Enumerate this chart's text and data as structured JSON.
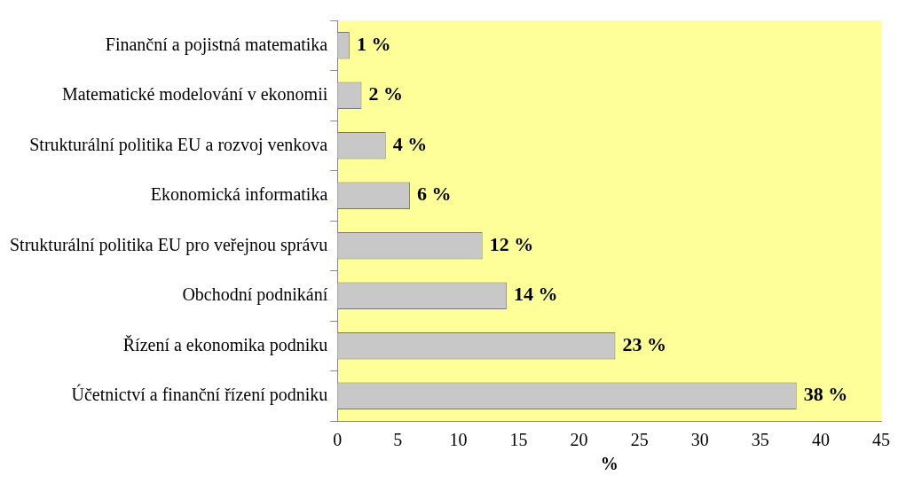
{
  "chart_data": {
    "type": "bar",
    "orientation": "horizontal",
    "xlabel": "%",
    "categories": [
      "Finanční a pojistná matematika",
      "Matematické modelování v ekonomii",
      "Strukturální politika EU a rozvoj venkova",
      "Ekonomická informatika",
      "Strukturální politika EU pro veřejnou správu",
      "Obchodní podnikání",
      "Řízení a ekonomika podniku",
      "Účetnictví a finanční řízení podniku"
    ],
    "values": [
      1,
      2,
      4,
      6,
      12,
      14,
      23,
      38
    ],
    "value_labels": [
      "1 %",
      "2 %",
      "4 %",
      "6 %",
      "12 %",
      "14 %",
      "23 %",
      "38 %"
    ],
    "color": "#c8c8c8",
    "xlim": [
      0,
      45
    ],
    "xticks": [
      0,
      5,
      10,
      15,
      20,
      25,
      30,
      35,
      40,
      45
    ],
    "grid": false,
    "legend": false
  }
}
